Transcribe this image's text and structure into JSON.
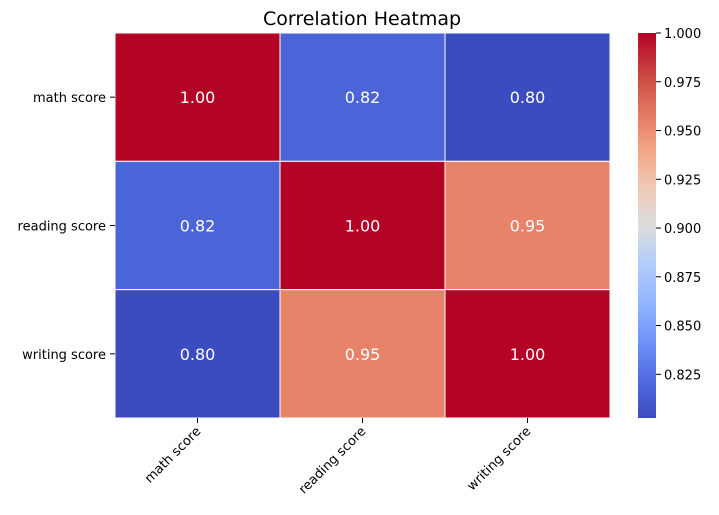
{
  "chart_data": {
    "type": "heatmap",
    "title": "Correlation Heatmap",
    "xlabel": "",
    "ylabel": "",
    "x_categories": [
      "math score",
      "reading score",
      "writing score"
    ],
    "y_categories": [
      "math score",
      "reading score",
      "writing score"
    ],
    "values": [
      [
        1.0,
        0.8176,
        0.8026
      ],
      [
        0.8176,
        1.0,
        0.9546
      ],
      [
        0.8026,
        0.9546,
        1.0
      ]
    ],
    "annotations": [
      [
        "1.00",
        "0.82",
        "0.80"
      ],
      [
        "0.82",
        "1.00",
        "0.95"
      ],
      [
        "0.80",
        "0.95",
        "1.00"
      ]
    ],
    "colormap": "coolwarm",
    "color_range": [
      0.8026,
      1.0
    ],
    "colorbar_ticks": [
      "0.825",
      "0.850",
      "0.875",
      "0.900",
      "0.925",
      "0.950",
      "0.975",
      "1.000"
    ],
    "grid_line_color": "#ffffff"
  }
}
